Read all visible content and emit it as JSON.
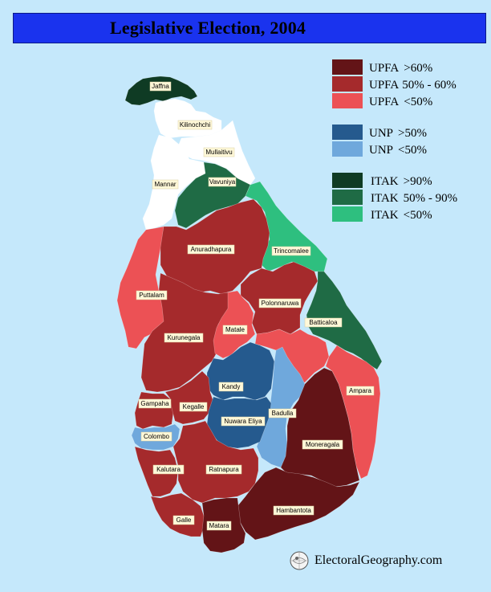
{
  "title": "Legislative Election, 2004",
  "colors": {
    "background": "#c5e8fb",
    "title_bar": "#1a33ee",
    "land_none": "#ffffff",
    "label_fill": "#fff8d8"
  },
  "legend": {
    "groups": [
      {
        "items": [
          {
            "key": "upfa_gt60",
            "party": "UPFA",
            "range": ">60%",
            "color": "#631417"
          },
          {
            "key": "upfa_50_60",
            "party": "UPFA",
            "range": "50% - 60%",
            "color": "#a52a2c"
          },
          {
            "key": "upfa_lt50",
            "party": "UPFA",
            "range": "<50%",
            "color": "#ec5155"
          }
        ]
      },
      {
        "items": [
          {
            "key": "unp_gt50",
            "party": "UNP",
            "range": ">50%",
            "color": "#255a8e"
          },
          {
            "key": "unp_lt50",
            "party": "UNP",
            "range": "<50%",
            "color": "#6fa8dc"
          }
        ]
      },
      {
        "items": [
          {
            "key": "itak_gt90",
            "party": "ITAK",
            "range": ">90%",
            "color": "#0f3b24"
          },
          {
            "key": "itak_50_90",
            "party": "ITAK",
            "range": "50% - 90%",
            "color": "#1f6b45"
          },
          {
            "key": "itak_lt50",
            "party": "ITAK",
            "range": "<50%",
            "color": "#2ebf7f"
          }
        ]
      }
    ]
  },
  "districts": [
    {
      "id": "jaffna",
      "name": "Jaffna",
      "category": "itak_gt90"
    },
    {
      "id": "kilinochchi",
      "name": "Kilinochchi",
      "category": "none"
    },
    {
      "id": "mullaitivu",
      "name": "Mullaitivu",
      "category": "none"
    },
    {
      "id": "mannar",
      "name": "Mannar",
      "category": "none"
    },
    {
      "id": "vavuniya",
      "name": "Vavuniya",
      "category": "itak_50_90"
    },
    {
      "id": "trincomalee",
      "name": "Trincomalee",
      "category": "itak_lt50"
    },
    {
      "id": "anuradhapura",
      "name": "Anuradhapura",
      "category": "upfa_50_60"
    },
    {
      "id": "puttalam",
      "name": "Puttalam",
      "category": "upfa_lt50"
    },
    {
      "id": "polonnaruwa",
      "name": "Polonnaruwa",
      "category": "upfa_50_60"
    },
    {
      "id": "batticaloa",
      "name": "Batticaloa",
      "category": "itak_50_90"
    },
    {
      "id": "kurunegala",
      "name": "Kurunegala",
      "category": "upfa_50_60"
    },
    {
      "id": "matale",
      "name": "Matale",
      "category": "upfa_lt50"
    },
    {
      "id": "ampara",
      "name": "Ampara",
      "category": "upfa_lt50"
    },
    {
      "id": "kandy",
      "name": "Kandy",
      "category": "unp_gt50"
    },
    {
      "id": "gampaha",
      "name": "Gampaha",
      "category": "upfa_50_60"
    },
    {
      "id": "kegalle",
      "name": "Kegalle",
      "category": "upfa_50_60"
    },
    {
      "id": "badulla",
      "name": "Badulla",
      "category": "unp_lt50"
    },
    {
      "id": "nuwara_eliya",
      "name": "Nuwara Eliya",
      "category": "unp_gt50"
    },
    {
      "id": "colombo",
      "name": "Colombo",
      "category": "unp_lt50"
    },
    {
      "id": "moneragala",
      "name": "Moneragala",
      "category": "upfa_gt60"
    },
    {
      "id": "kalutara",
      "name": "Kalutara",
      "category": "upfa_50_60"
    },
    {
      "id": "ratnapura",
      "name": "Ratnapura",
      "category": "upfa_50_60"
    },
    {
      "id": "hambantota",
      "name": "Hambantota",
      "category": "upfa_gt60"
    },
    {
      "id": "galle",
      "name": "Galle",
      "category": "upfa_50_60"
    },
    {
      "id": "matara",
      "name": "Matara",
      "category": "upfa_gt60"
    }
  ],
  "credit": {
    "text": "ElectoralGeography.com",
    "logo_icon": "globe-head-icon"
  }
}
